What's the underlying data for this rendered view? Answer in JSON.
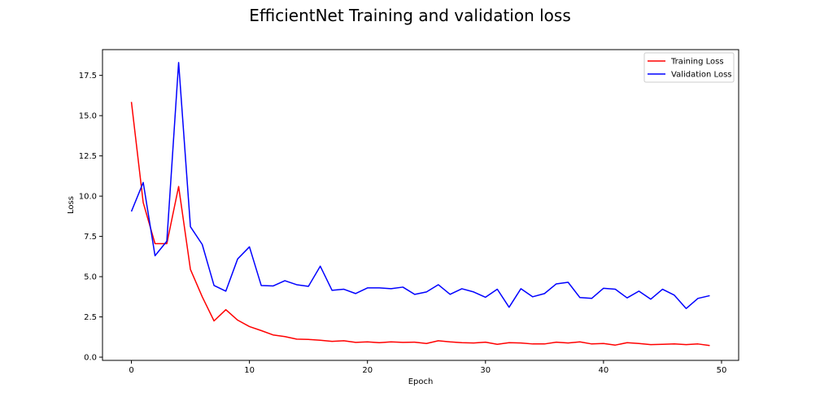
{
  "chart_data": {
    "type": "line",
    "title": "EfficientNet Training and validation loss",
    "xlabel": "Epoch",
    "ylabel": "Loss",
    "xlim": [
      -2.45,
      51.45
    ],
    "ylim": [
      -0.2,
      19.1
    ],
    "xticks": [
      0,
      10,
      20,
      30,
      40,
      50
    ],
    "xtick_labels": [
      "0",
      "10",
      "20",
      "30",
      "40",
      "50"
    ],
    "yticks": [
      0.0,
      2.5,
      5.0,
      7.5,
      10.0,
      12.5,
      15.0,
      17.5
    ],
    "ytick_labels": [
      "0.0",
      "2.5",
      "5.0",
      "7.5",
      "10.0",
      "12.5",
      "15.0",
      "17.5"
    ],
    "grid": false,
    "legend_position": "top-right",
    "x": [
      0,
      1,
      2,
      3,
      4,
      5,
      6,
      7,
      8,
      9,
      10,
      11,
      12,
      13,
      14,
      15,
      16,
      17,
      18,
      19,
      20,
      21,
      22,
      23,
      24,
      25,
      26,
      27,
      28,
      29,
      30,
      31,
      32,
      33,
      34,
      35,
      36,
      37,
      38,
      39,
      40,
      41,
      42,
      43,
      44,
      45,
      46,
      47,
      48,
      49
    ],
    "series": [
      {
        "name": "Training Loss",
        "color": "#ff0000",
        "values": [
          15.85,
          9.6,
          7.05,
          7.05,
          10.6,
          5.45,
          3.75,
          2.25,
          2.95,
          2.3,
          1.9,
          1.65,
          1.38,
          1.28,
          1.12,
          1.1,
          1.05,
          0.98,
          1.02,
          0.92,
          0.95,
          0.9,
          0.95,
          0.92,
          0.93,
          0.85,
          1.02,
          0.95,
          0.9,
          0.88,
          0.93,
          0.8,
          0.9,
          0.88,
          0.82,
          0.82,
          0.93,
          0.88,
          0.95,
          0.82,
          0.85,
          0.75,
          0.9,
          0.85,
          0.78,
          0.8,
          0.82,
          0.78,
          0.82,
          0.72
        ]
      },
      {
        "name": "Validation Loss",
        "color": "#0000ff",
        "values": [
          9.05,
          10.85,
          6.3,
          7.2,
          18.3,
          8.1,
          7.0,
          4.45,
          4.1,
          6.1,
          6.85,
          4.45,
          4.42,
          4.75,
          4.5,
          4.4,
          5.65,
          4.15,
          4.22,
          3.95,
          4.3,
          4.3,
          4.25,
          4.35,
          3.9,
          4.05,
          4.5,
          3.9,
          4.25,
          4.05,
          3.72,
          4.22,
          3.1,
          4.25,
          3.75,
          3.95,
          4.55,
          4.65,
          3.7,
          3.65,
          4.28,
          4.22,
          3.68,
          4.1,
          3.6,
          4.22,
          3.85,
          3.02,
          3.65,
          3.82
        ]
      }
    ]
  }
}
